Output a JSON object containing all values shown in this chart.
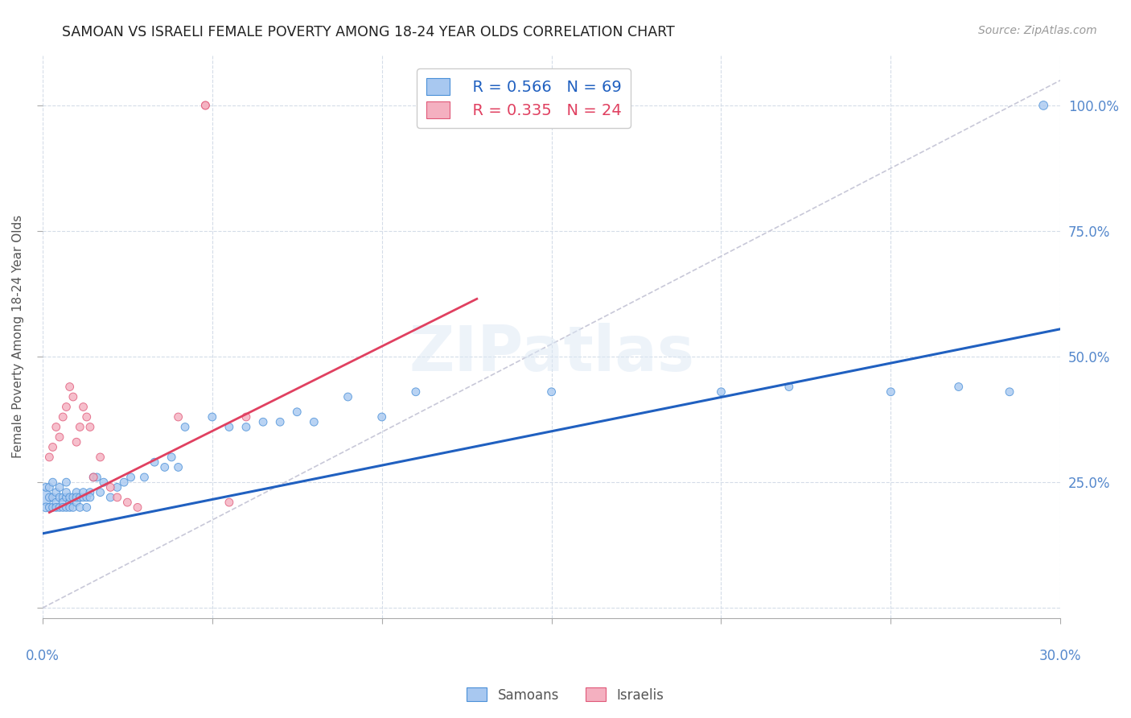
{
  "title": "SAMOAN VS ISRAELI FEMALE POVERTY AMONG 18-24 YEAR OLDS CORRELATION CHART",
  "source": "Source: ZipAtlas.com",
  "ylabel": "Female Poverty Among 18-24 Year Olds",
  "xlim": [
    0.0,
    0.3
  ],
  "ylim": [
    -0.02,
    1.1
  ],
  "samoan_R": 0.566,
  "samoan_N": 69,
  "israeli_R": 0.335,
  "israeli_N": 24,
  "samoan_color": "#a8c8f0",
  "israeli_color": "#f4b0c0",
  "samoan_edge_color": "#4a90d8",
  "israeli_edge_color": "#e05878",
  "samoan_line_color": "#2060c0",
  "israeli_line_color": "#e04060",
  "reference_line_color": "#c8c8d8",
  "grid_color": "#d4dce8",
  "background_color": "#ffffff",
  "title_color": "#222222",
  "axis_label_color": "#5588cc",
  "watermark": "ZIPatlas",
  "samoan_trend": [
    0.0,
    0.148,
    0.3,
    0.555
  ],
  "israeli_trend": [
    0.002,
    0.19,
    0.128,
    0.615
  ],
  "samoan_scatter_x": [
    0.0005,
    0.001,
    0.001,
    0.002,
    0.002,
    0.002,
    0.003,
    0.003,
    0.003,
    0.004,
    0.004,
    0.004,
    0.005,
    0.005,
    0.005,
    0.006,
    0.006,
    0.006,
    0.007,
    0.007,
    0.007,
    0.007,
    0.008,
    0.008,
    0.008,
    0.009,
    0.009,
    0.01,
    0.01,
    0.01,
    0.011,
    0.011,
    0.012,
    0.012,
    0.013,
    0.013,
    0.014,
    0.014,
    0.015,
    0.016,
    0.017,
    0.018,
    0.02,
    0.022,
    0.024,
    0.026,
    0.03,
    0.033,
    0.036,
    0.038,
    0.04,
    0.042,
    0.05,
    0.055,
    0.06,
    0.065,
    0.07,
    0.075,
    0.08,
    0.09,
    0.1,
    0.11,
    0.15,
    0.2,
    0.22,
    0.25,
    0.27,
    0.285,
    0.295
  ],
  "samoan_scatter_y": [
    0.22,
    0.2,
    0.24,
    0.22,
    0.2,
    0.24,
    0.22,
    0.2,
    0.25,
    0.21,
    0.2,
    0.23,
    0.22,
    0.2,
    0.24,
    0.22,
    0.21,
    0.2,
    0.22,
    0.2,
    0.23,
    0.25,
    0.21,
    0.22,
    0.2,
    0.22,
    0.2,
    0.23,
    0.21,
    0.22,
    0.22,
    0.2,
    0.22,
    0.23,
    0.22,
    0.2,
    0.23,
    0.22,
    0.26,
    0.26,
    0.23,
    0.25,
    0.22,
    0.24,
    0.25,
    0.26,
    0.26,
    0.29,
    0.28,
    0.3,
    0.28,
    0.36,
    0.38,
    0.36,
    0.36,
    0.37,
    0.37,
    0.39,
    0.37,
    0.42,
    0.38,
    0.43,
    0.43,
    0.43,
    0.44,
    0.43,
    0.44,
    0.43,
    1.0
  ],
  "samoan_scatter_size": [
    200,
    60,
    50,
    50,
    50,
    50,
    50,
    50,
    50,
    50,
    50,
    50,
    50,
    50,
    50,
    50,
    50,
    50,
    50,
    50,
    50,
    50,
    50,
    50,
    50,
    50,
    50,
    50,
    50,
    50,
    50,
    50,
    50,
    50,
    50,
    50,
    50,
    50,
    50,
    50,
    50,
    50,
    50,
    50,
    50,
    50,
    50,
    50,
    50,
    50,
    50,
    50,
    50,
    50,
    50,
    50,
    50,
    50,
    50,
    50,
    50,
    50,
    50,
    50,
    50,
    50,
    50,
    50,
    60
  ],
  "israeli_scatter_x": [
    0.002,
    0.003,
    0.004,
    0.005,
    0.006,
    0.007,
    0.008,
    0.009,
    0.01,
    0.011,
    0.012,
    0.013,
    0.014,
    0.015,
    0.017,
    0.02,
    0.022,
    0.025,
    0.028,
    0.04,
    0.055,
    0.06,
    0.048,
    0.048
  ],
  "israeli_scatter_y": [
    0.3,
    0.32,
    0.36,
    0.34,
    0.38,
    0.4,
    0.44,
    0.42,
    0.33,
    0.36,
    0.4,
    0.38,
    0.36,
    0.26,
    0.3,
    0.24,
    0.22,
    0.21,
    0.2,
    0.38,
    0.21,
    0.38,
    1.0,
    1.0
  ],
  "israeli_scatter_size": [
    50,
    50,
    50,
    50,
    50,
    50,
    50,
    50,
    50,
    50,
    50,
    50,
    50,
    50,
    50,
    50,
    50,
    50,
    50,
    50,
    50,
    50,
    50,
    50
  ]
}
